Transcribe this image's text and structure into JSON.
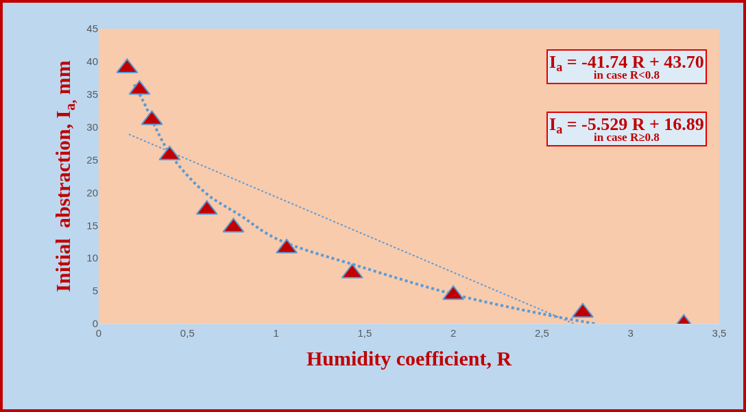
{
  "chart_data": {
    "type": "scatter",
    "xlabel": "Humidity coefficient, R",
    "ylabel": "Initial  abstraction, I$_{a,}$ mm",
    "xlim": [
      0,
      3.5
    ],
    "xticks": [
      0,
      {
        "value": 0.5,
        "label": "0,5"
      },
      1,
      {
        "value": 1.5,
        "label": "1,5"
      },
      2,
      {
        "value": 2.5,
        "label": "2,5"
      },
      3,
      {
        "value": 3.5,
        "label": "3,5"
      }
    ],
    "ylim": [
      0,
      45
    ],
    "yticks": [
      0,
      5,
      10,
      15,
      20,
      25,
      30,
      35,
      40,
      45
    ],
    "line_style": "dotted",
    "series": [
      {
        "type": "line",
        "marker": "none",
        "color": "#5b9bd5",
        "x": [
          0.2,
          0.25,
          0.4,
          0.6,
          0.8,
          1.0,
          1.5,
          2.0,
          2.5,
          2.8
        ],
        "values": [
          36.5,
          34,
          26,
          20,
          16.5,
          13,
          8.5,
          4.5,
          1.5,
          0
        ]
      },
      {
        "type": "line",
        "marker": "none",
        "color": "#5b9bd5",
        "x": [
          0.17,
          2.68
        ],
        "values": [
          28.9,
          0
        ]
      },
      {
        "marker": "triangle",
        "color": "#c00000",
        "x": [
          0.16,
          0.23,
          0.3,
          0.4,
          0.61,
          0.76,
          1.06,
          1.43,
          2.0,
          2.73,
          3.3
        ],
        "values": [
          39.0,
          35.7,
          31.1,
          25.7,
          17.4,
          14.7,
          11.5,
          7.7,
          4.4,
          1.7,
          0
        ]
      }
    ],
    "annotations": [
      "I$_{a}$ = -41.74 R + 43.70",
      "in case R<0.8",
      "I$_{a}$ = -5.529 R + 16.89",
      "in case R≥0.8"
    ]
  }
}
